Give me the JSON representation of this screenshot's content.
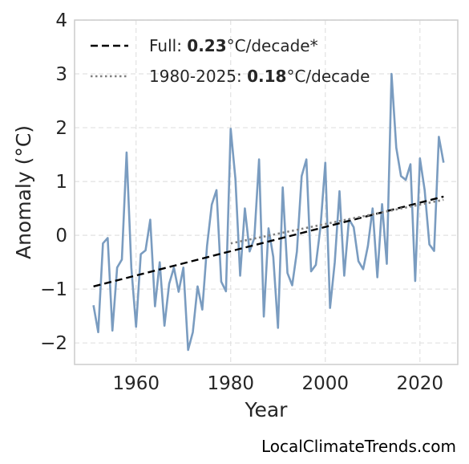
{
  "chart_data": {
    "type": "line",
    "xlabel": "Year",
    "ylabel": "Anomaly (°C)",
    "xlim": [
      1947,
      2028
    ],
    "ylim": [
      -2.4,
      4.0
    ],
    "xticks": [
      1960,
      1980,
      2000,
      2020
    ],
    "yticks": [
      -2,
      -1,
      0,
      1,
      2,
      3,
      4
    ],
    "ytick_labels": [
      "−2",
      "−1",
      "0",
      "1",
      "2",
      "3",
      "4"
    ],
    "grid": true,
    "legend_position": "top-left",
    "series": [
      {
        "style": "solid",
        "color": "#7a9cc0",
        "x": [
          1951,
          1952,
          1953,
          1954,
          1955,
          1956,
          1957,
          1958,
          1959,
          1960,
          1961,
          1962,
          1963,
          1964,
          1965,
          1966,
          1967,
          1968,
          1969,
          1970,
          1971,
          1972,
          1973,
          1974,
          1975,
          1976,
          1977,
          1978,
          1979,
          1980,
          1981,
          1982,
          1983,
          1984,
          1985,
          1986,
          1987,
          1988,
          1989,
          1990,
          1991,
          1992,
          1993,
          1994,
          1995,
          1996,
          1997,
          1998,
          1999,
          2000,
          2001,
          2002,
          2003,
          2004,
          2005,
          2006,
          2007,
          2008,
          2009,
          2010,
          2011,
          2012,
          2013,
          2014,
          2015,
          2016,
          2017,
          2018,
          2019,
          2020,
          2021,
          2022,
          2023,
          2024,
          2025
        ],
        "y": [
          -1.3,
          -1.8,
          -0.15,
          -0.05,
          -1.77,
          -0.6,
          -0.45,
          1.54,
          -0.6,
          -1.7,
          -0.35,
          -0.28,
          0.29,
          -1.32,
          -0.5,
          -1.68,
          -0.9,
          -0.6,
          -1.05,
          -0.6,
          -2.13,
          -1.8,
          -0.95,
          -1.38,
          -0.2,
          0.57,
          0.84,
          -0.86,
          -1.04,
          1.98,
          1.05,
          -0.75,
          0.5,
          -0.3,
          -0.05,
          1.41,
          -1.51,
          0.13,
          -0.4,
          -1.72,
          0.89,
          -0.7,
          -0.93,
          -0.3,
          1.1,
          1.41,
          -0.67,
          -0.55,
          0.17,
          1.35,
          -1.35,
          -0.5,
          0.82,
          -0.75,
          0.3,
          0.15,
          -0.48,
          -0.63,
          -0.2,
          0.5,
          -0.78,
          0.58,
          -0.53,
          3.0,
          1.63,
          1.1,
          1.03,
          1.32,
          -0.85,
          1.43,
          0.84,
          -0.17,
          -0.29,
          1.83,
          1.35
        ]
      },
      {
        "name": "Full: 0.23°C/decade*",
        "style": "dashed",
        "color": "#000000",
        "x": [
          1951,
          2025
        ],
        "y": [
          -0.95,
          0.72
        ]
      },
      {
        "name": "1980-2025: 0.18°C/decade",
        "style": "dotted",
        "color": "#808080",
        "x": [
          1980,
          2025
        ],
        "y": [
          -0.15,
          0.66
        ]
      }
    ],
    "legend": [
      {
        "prefix": "Full: ",
        "value": "0.23",
        "suffix": "°C/decade*"
      },
      {
        "prefix": "1980-2025: ",
        "value": "0.18",
        "suffix": "°C/decade"
      }
    ]
  },
  "credit": "LocalClimateTrends.com"
}
